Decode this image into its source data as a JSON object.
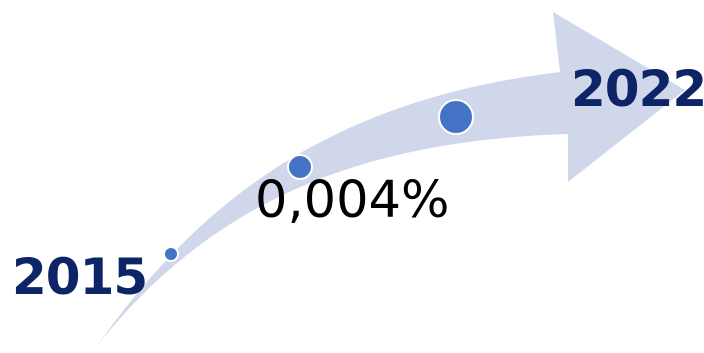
{
  "start_year": "2015",
  "end_year": "2022",
  "value": "0,004%",
  "colors": {
    "arrow": "#D1D7EB",
    "dot_fill": "#4472C4",
    "dot_stroke": "#ffffff",
    "year_text": "#0D2466",
    "value_text": "#000000"
  },
  "milestones": [
    {
      "name": "milestone-dot-small"
    },
    {
      "name": "milestone-dot-medium"
    },
    {
      "name": "milestone-dot-large"
    }
  ]
}
